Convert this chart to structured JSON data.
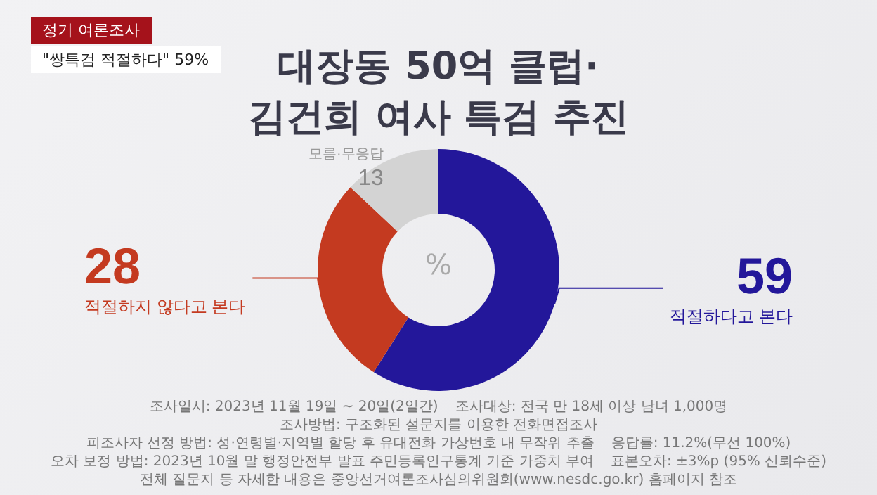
{
  "chart_data": {
    "type": "donut",
    "title": "대장동 50억 클럽·\n김건희 여사 특검 추진",
    "subtitle": "정기 여론조사",
    "categories": [
      "적절하다고 본다",
      "적절하지 않다고 본다",
      "모름·무응답"
    ],
    "values": [
      59,
      28,
      13
    ],
    "colors": [
      "#23179a",
      "#c43a20",
      "#d3d3d3"
    ],
    "data_labels": true,
    "annotations": [
      "\"쌍특검 적절하다\" 59%",
      "%",
      "조사일시: 2023년 11월 19일 ~ 20일(2일간)",
      "조사대상: 전국 만 18세 이상 남녀 1,000명",
      "조사방법: 구조화된 설문지를 이용한 전화면접조사",
      "피조사자 선정 방법: 성·연령별·지역별 할당 후 유대전화 가상번호 내 무작위 추출",
      "응답률: 11.2%(무선 100%)",
      "오차 보정 방법: 2023년 10월 말 행정안전부 발표 주민등록인구통계 기준 가중치 부여",
      "표본오차: ±3%p (95% 신뢰수준)",
      "전체 질문지 등 자세한 내용은 중앙선거여론조사심의위원회(www.nesdc.go.kr) 홈페이지 참조"
    ]
  }
}
